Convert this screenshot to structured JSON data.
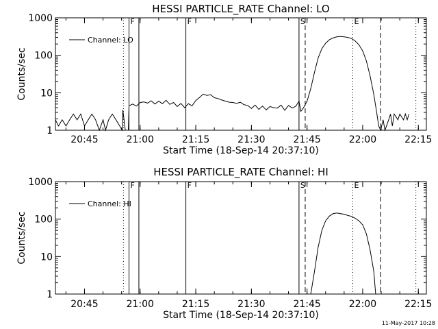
{
  "chart_data": [
    {
      "type": "line",
      "title": "HESSI PARTICLE_RATE Channel: LO",
      "xlabel": "Start Time (18-Sep-14 20:37:10)",
      "ylabel": "Counts/sec",
      "y_scale": "log",
      "ylim": [
        1,
        1000
      ],
      "xlim": [
        "20:37:10",
        "22:17:10"
      ],
      "y_ticks": [
        "1",
        "10",
        "100",
        "1000"
      ],
      "x_ticks": [
        "20:45",
        "21:00",
        "21:15",
        "21:30",
        "21:45",
        "22:00",
        "22:15"
      ],
      "legend": {
        "placement": "top-left",
        "entries": [
          "Channel: LO"
        ]
      },
      "markers": [
        {
          "time": "20:55:30",
          "label": "",
          "style": "dotted"
        },
        {
          "time": "20:57:00",
          "label": "F",
          "style": "solid"
        },
        {
          "time": "20:59:40",
          "label": "",
          "style": "solid"
        },
        {
          "time": "21:12:20",
          "label": "F",
          "style": "solid"
        },
        {
          "time": "21:42:50",
          "label": "S",
          "style": "solid"
        },
        {
          "time": "21:44:30",
          "label": "",
          "style": "dashed"
        },
        {
          "time": "21:57:20",
          "label": "E",
          "style": "dotted"
        },
        {
          "time": "22:04:50",
          "label": "",
          "style": "dashed"
        },
        {
          "time": "22:14:20",
          "label": "",
          "style": "dotted"
        }
      ],
      "series": [
        {
          "name": "Channel: LO",
          "points": [
            [
              "20:37:10",
              1.9
            ],
            [
              "20:38:00",
              1.3
            ],
            [
              "20:39:00",
              1.9
            ],
            [
              "20:40:00",
              1.3
            ],
            [
              "20:41:00",
              1.9
            ],
            [
              "20:42:00",
              2.7
            ],
            [
              "20:43:00",
              1.9
            ],
            [
              "20:44:00",
              2.7
            ],
            [
              "20:45:00",
              1.3
            ],
            [
              "20:46:00",
              1.9
            ],
            [
              "20:47:00",
              2.7
            ],
            [
              "20:48:00",
              1.9
            ],
            [
              "20:49:00",
              1.0
            ],
            [
              "20:50:00",
              1.9
            ],
            [
              "20:50:40",
              1.0
            ],
            [
              "20:51:30",
              1.9
            ],
            [
              "20:52:30",
              2.7
            ],
            [
              "20:53:30",
              1.9
            ],
            [
              "20:54:30",
              1.3
            ],
            [
              "20:55:10",
              1.0
            ],
            [
              "20:55:20",
              3.5
            ],
            [
              "20:56:00",
              1.0
            ],
            [
              "20:56:50",
              1.0
            ],
            [
              "20:57:00",
              4.5
            ],
            [
              "20:58:00",
              5.0
            ],
            [
              "20:59:00",
              4.4
            ],
            [
              "21:00:00",
              5.5
            ],
            [
              "21:01:00",
              5.7
            ],
            [
              "21:02:00",
              5.3
            ],
            [
              "21:03:00",
              6.1
            ],
            [
              "21:04:00",
              5.0
            ],
            [
              "21:05:00",
              6.0
            ],
            [
              "21:06:00",
              5.1
            ],
            [
              "21:07:00",
              6.3
            ],
            [
              "21:08:00",
              4.9
            ],
            [
              "21:09:00",
              5.5
            ],
            [
              "21:10:00",
              4.3
            ],
            [
              "21:11:00",
              5.2
            ],
            [
              "21:12:00",
              4.0
            ],
            [
              "21:13:00",
              5.1
            ],
            [
              "21:14:00",
              4.5
            ],
            [
              "21:15:00",
              6.2
            ],
            [
              "21:16:00",
              7.5
            ],
            [
              "21:17:00",
              9.2
            ],
            [
              "21:18:00",
              8.5
            ],
            [
              "21:19:00",
              8.9
            ],
            [
              "21:20:00",
              7.4
            ],
            [
              "21:21:00",
              7.0
            ],
            [
              "21:22:00",
              6.4
            ],
            [
              "21:23:00",
              6.0
            ],
            [
              "21:24:00",
              5.6
            ],
            [
              "21:25:00",
              5.5
            ],
            [
              "21:26:00",
              5.2
            ],
            [
              "21:27:00",
              5.6
            ],
            [
              "21:28:00",
              4.8
            ],
            [
              "21:29:00",
              4.6
            ],
            [
              "21:30:00",
              3.8
            ],
            [
              "21:31:00",
              4.7
            ],
            [
              "21:32:00",
              3.6
            ],
            [
              "21:33:00",
              4.4
            ],
            [
              "21:34:00",
              3.5
            ],
            [
              "21:35:00",
              4.3
            ],
            [
              "21:36:00",
              4.0
            ],
            [
              "21:37:00",
              3.9
            ],
            [
              "21:38:00",
              4.7
            ],
            [
              "21:39:00",
              3.4
            ],
            [
              "21:40:00",
              4.6
            ],
            [
              "21:41:00",
              3.9
            ],
            [
              "21:42:00",
              4.4
            ],
            [
              "21:42:50",
              6.0
            ],
            [
              "21:43:20",
              3.2
            ],
            [
              "21:44:00",
              3.9
            ],
            [
              "21:45:00",
              6.0
            ],
            [
              "21:46:00",
              13
            ],
            [
              "21:47:00",
              35
            ],
            [
              "21:48:00",
              85
            ],
            [
              "21:49:00",
              150
            ],
            [
              "21:50:00",
              210
            ],
            [
              "21:51:00",
              260
            ],
            [
              "21:52:00",
              290
            ],
            [
              "21:53:00",
              310
            ],
            [
              "21:54:00",
              320
            ],
            [
              "21:55:00",
              310
            ],
            [
              "21:56:00",
              300
            ],
            [
              "21:57:00",
              280
            ],
            [
              "21:58:00",
              240
            ],
            [
              "21:59:00",
              190
            ],
            [
              "22:00:00",
              130
            ],
            [
              "22:01:00",
              70
            ],
            [
              "22:02:00",
              28
            ],
            [
              "22:03:00",
              9
            ],
            [
              "22:03:40",
              3.5
            ],
            [
              "22:04:20",
              1.3
            ],
            [
              "22:04:50",
              1.0
            ],
            [
              "22:05:30",
              1.9
            ],
            [
              "22:06:00",
              1.0
            ],
            [
              "22:07:00",
              1.9
            ],
            [
              "22:07:30",
              2.7
            ],
            [
              "22:08:00",
              1.3
            ],
            [
              "22:08:30",
              2.7
            ],
            [
              "22:09:30",
              1.9
            ],
            [
              "22:10:00",
              2.7
            ],
            [
              "22:11:00",
              1.9
            ],
            [
              "22:11:30",
              2.7
            ],
            [
              "22:12:00",
              1.9
            ],
            [
              "22:12:30",
              2.7
            ]
          ]
        }
      ]
    },
    {
      "type": "line",
      "title": "HESSI PARTICLE_RATE Channel: HI",
      "xlabel": "Start Time (18-Sep-14 20:37:10)",
      "ylabel": "Counts/sec",
      "y_scale": "log",
      "ylim": [
        1,
        1000
      ],
      "xlim": [
        "20:37:10",
        "22:17:10"
      ],
      "y_ticks": [
        "1",
        "10",
        "100",
        "1000"
      ],
      "x_ticks": [
        "20:45",
        "21:00",
        "21:15",
        "21:30",
        "21:45",
        "22:00",
        "22:15"
      ],
      "legend": {
        "placement": "top-left",
        "entries": [
          "Channel: HI"
        ]
      },
      "markers": [
        {
          "time": "20:55:30",
          "label": "",
          "style": "dotted"
        },
        {
          "time": "20:57:00",
          "label": "F",
          "style": "solid"
        },
        {
          "time": "20:59:40",
          "label": "",
          "style": "solid"
        },
        {
          "time": "21:12:20",
          "label": "F",
          "style": "solid"
        },
        {
          "time": "21:42:50",
          "label": "S",
          "style": "solid"
        },
        {
          "time": "21:44:30",
          "label": "",
          "style": "dashed"
        },
        {
          "time": "21:57:20",
          "label": "E",
          "style": "dotted"
        },
        {
          "time": "22:04:50",
          "label": "",
          "style": "dashed"
        },
        {
          "time": "22:14:20",
          "label": "",
          "style": "dotted"
        }
      ],
      "series": [
        {
          "name": "Channel: HI",
          "points": [
            [
              "21:46:00",
              1.0
            ],
            [
              "21:47:00",
              4
            ],
            [
              "21:48:00",
              18
            ],
            [
              "21:49:00",
              50
            ],
            [
              "21:50:00",
              90
            ],
            [
              "21:51:00",
              120
            ],
            [
              "21:52:00",
              140
            ],
            [
              "21:53:00",
              145
            ],
            [
              "21:54:00",
              140
            ],
            [
              "21:55:00",
              135
            ],
            [
              "21:56:00",
              125
            ],
            [
              "21:57:00",
              118
            ],
            [
              "21:58:00",
              105
            ],
            [
              "21:59:00",
              90
            ],
            [
              "22:00:00",
              70
            ],
            [
              "22:01:00",
              40
            ],
            [
              "22:02:00",
              15
            ],
            [
              "22:03:00",
              4
            ],
            [
              "22:03:30",
              1.0
            ]
          ]
        }
      ]
    }
  ],
  "footer": {
    "stamp": "11-May-2017 10:28"
  }
}
